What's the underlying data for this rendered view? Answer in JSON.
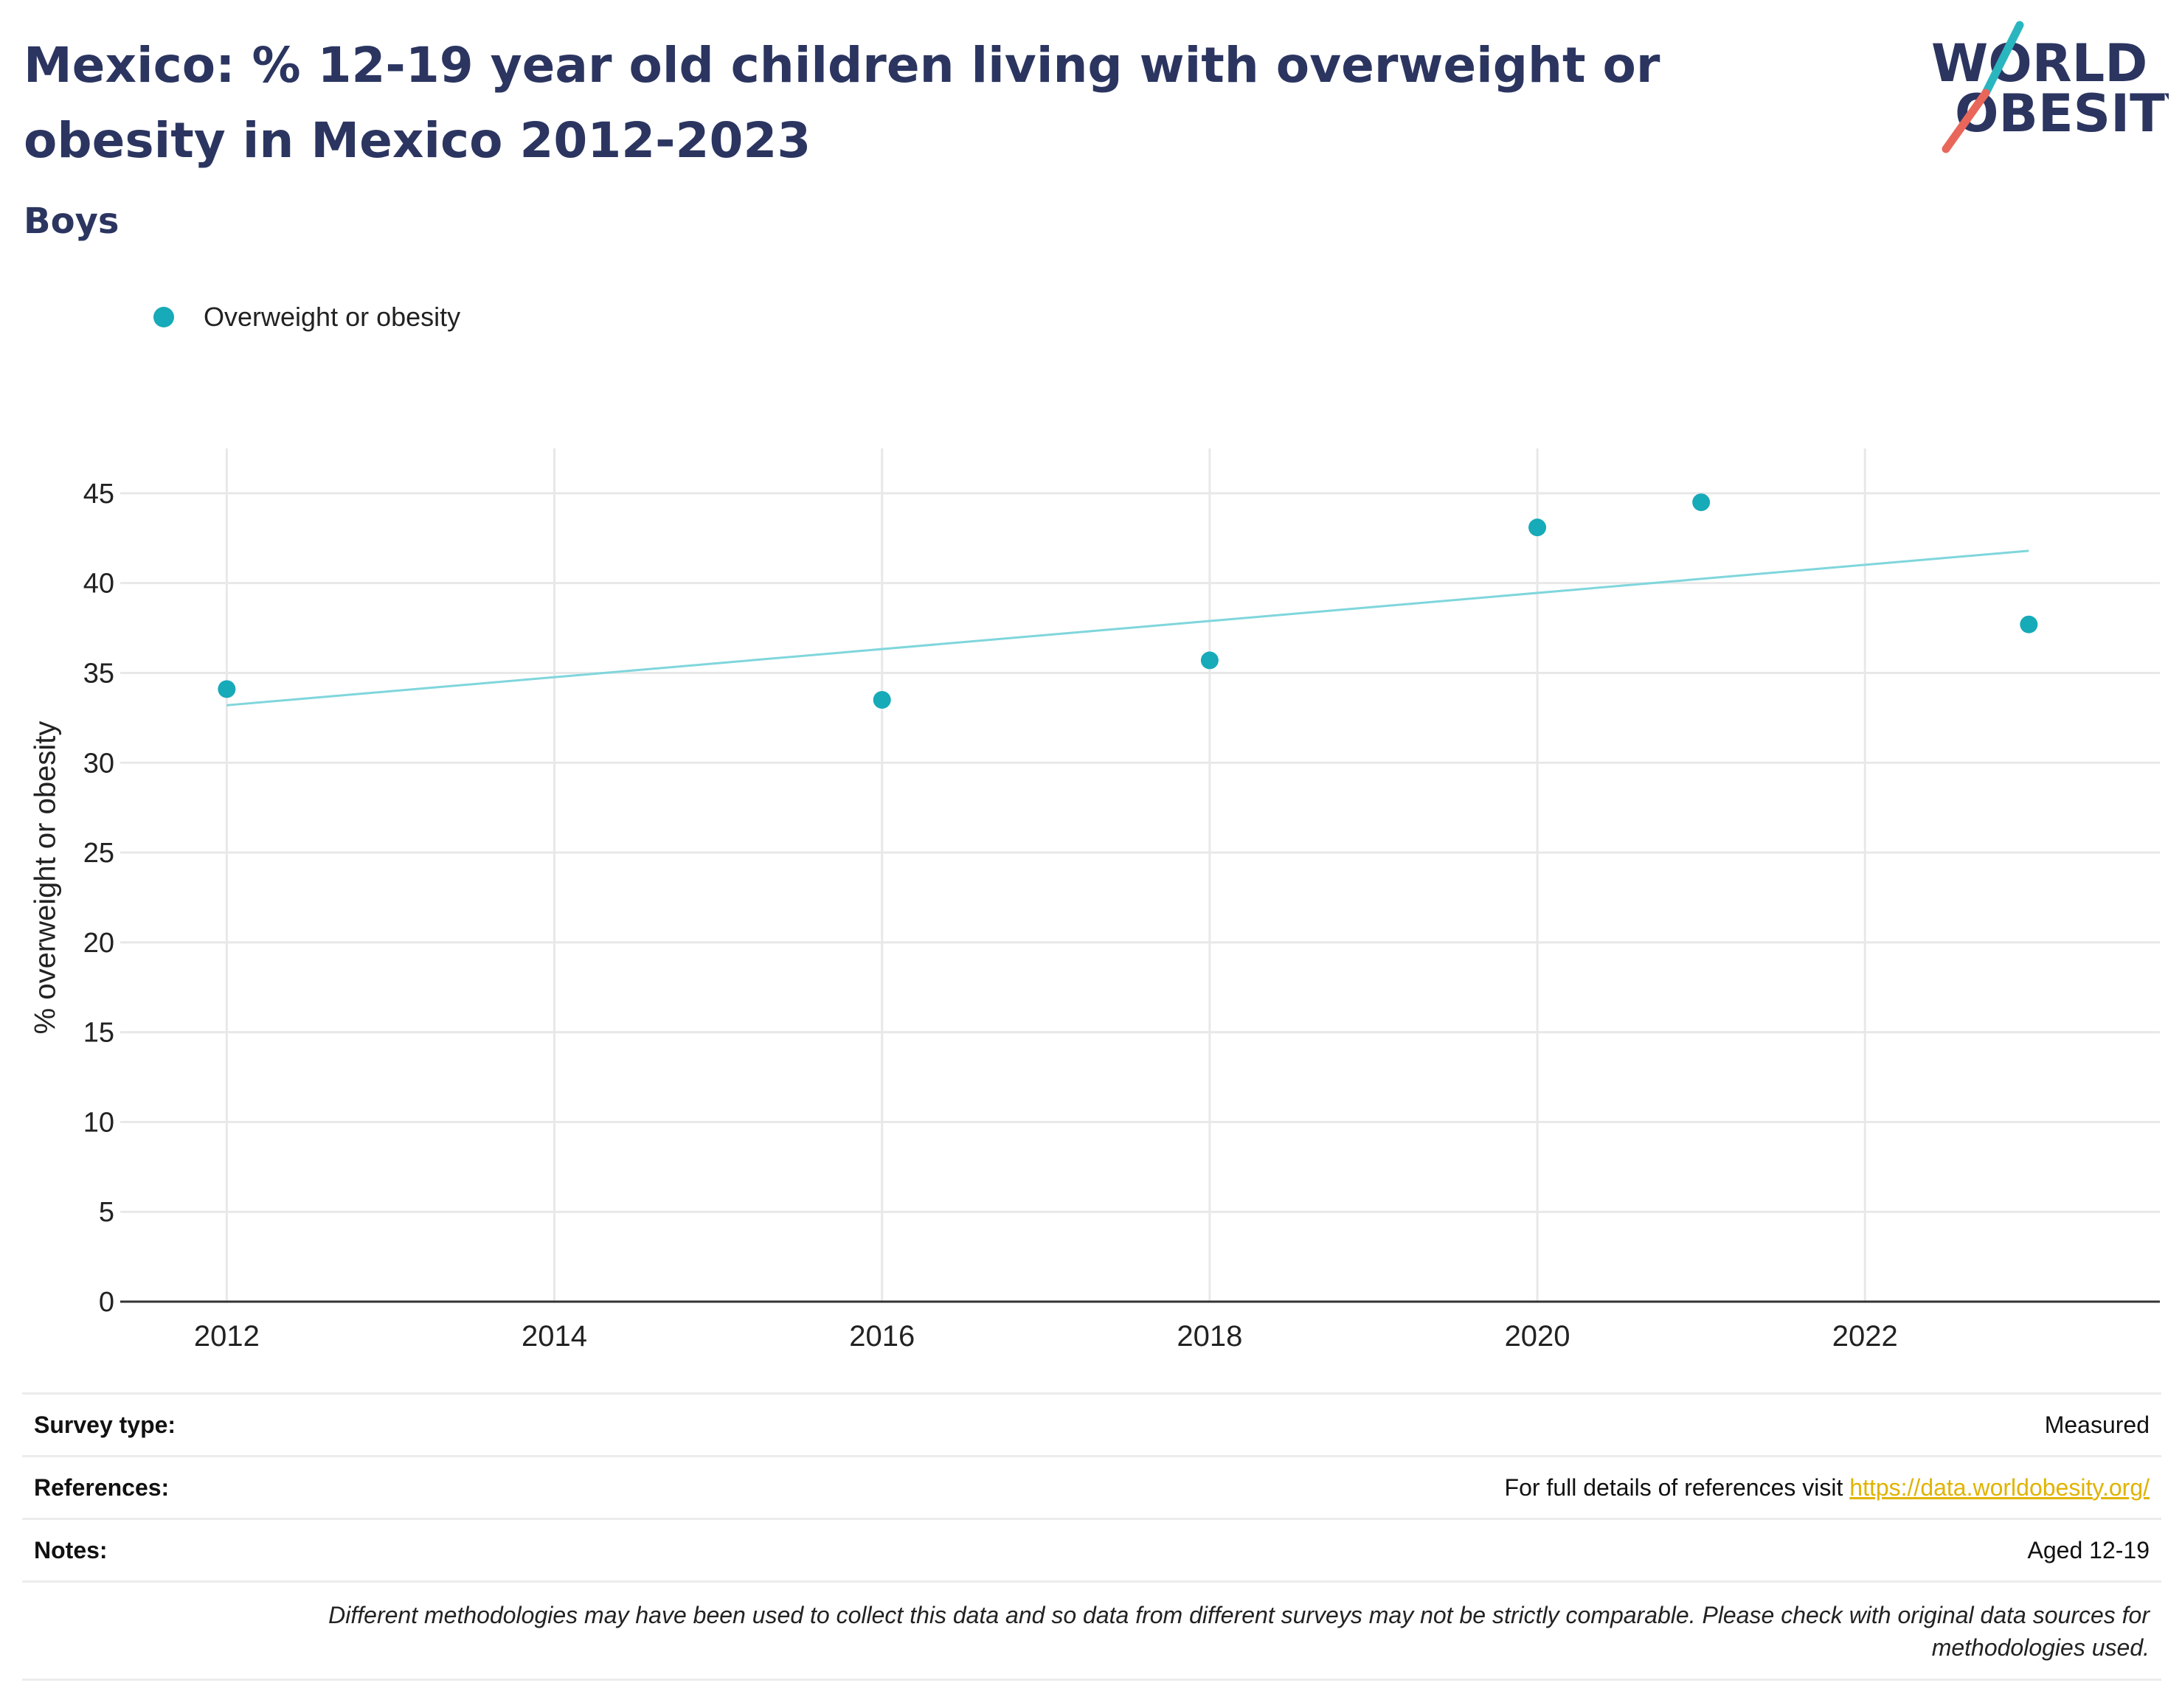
{
  "header": {
    "title": "Mexico: % 12-19 year old children living with overweight or obesity in Mexico 2012-2023",
    "subtitle": "Boys"
  },
  "logo": {
    "line1": "WORLD",
    "line2": "OBESITY",
    "accent_teal": "#2ab6bf",
    "accent_red": "#e8675a",
    "text_color": "#2b3560"
  },
  "colors": {
    "series": "#17aab8",
    "trend": "#7fd6dc",
    "grid": "#e8e8e8",
    "axis": "#333333",
    "title": "#2b3560",
    "link": "#e0b300"
  },
  "chart_data": {
    "type": "scatter",
    "ylabel": "% overweight or obesity",
    "xlim": [
      2011.35,
      2023.8
    ],
    "ylim": [
      0,
      47.5
    ],
    "xticks": [
      2012,
      2014,
      2016,
      2018,
      2020,
      2022
    ],
    "yticks": [
      0,
      5,
      10,
      15,
      20,
      25,
      30,
      35,
      40,
      45
    ],
    "grid": true,
    "legend_position": "top-left",
    "series": [
      {
        "name": "Overweight or obesity",
        "color": "#17aab8",
        "x": [
          2012,
          2016,
          2018,
          2020,
          2021,
          2023
        ],
        "y": [
          34.1,
          33.5,
          35.7,
          43.1,
          44.5,
          37.7
        ]
      }
    ],
    "trendline": {
      "x": [
        2012,
        2023
      ],
      "y": [
        33.2,
        41.8
      ],
      "color": "#7fd6dc"
    }
  },
  "info": {
    "survey_type_label": "Survey type:",
    "survey_type_value": "Measured",
    "references_label": "References:",
    "references_prefix": "For full details of references visit ",
    "references_link": "https://data.worldobesity.org/",
    "notes_label": "Notes:",
    "notes_value": "Aged 12-19",
    "disclaimer_line1": "Different methodologies may have been used to collect this data and so data from different surveys may not be strictly comparable. Please check with original data sources for",
    "disclaimer_line2": "methodologies used."
  }
}
